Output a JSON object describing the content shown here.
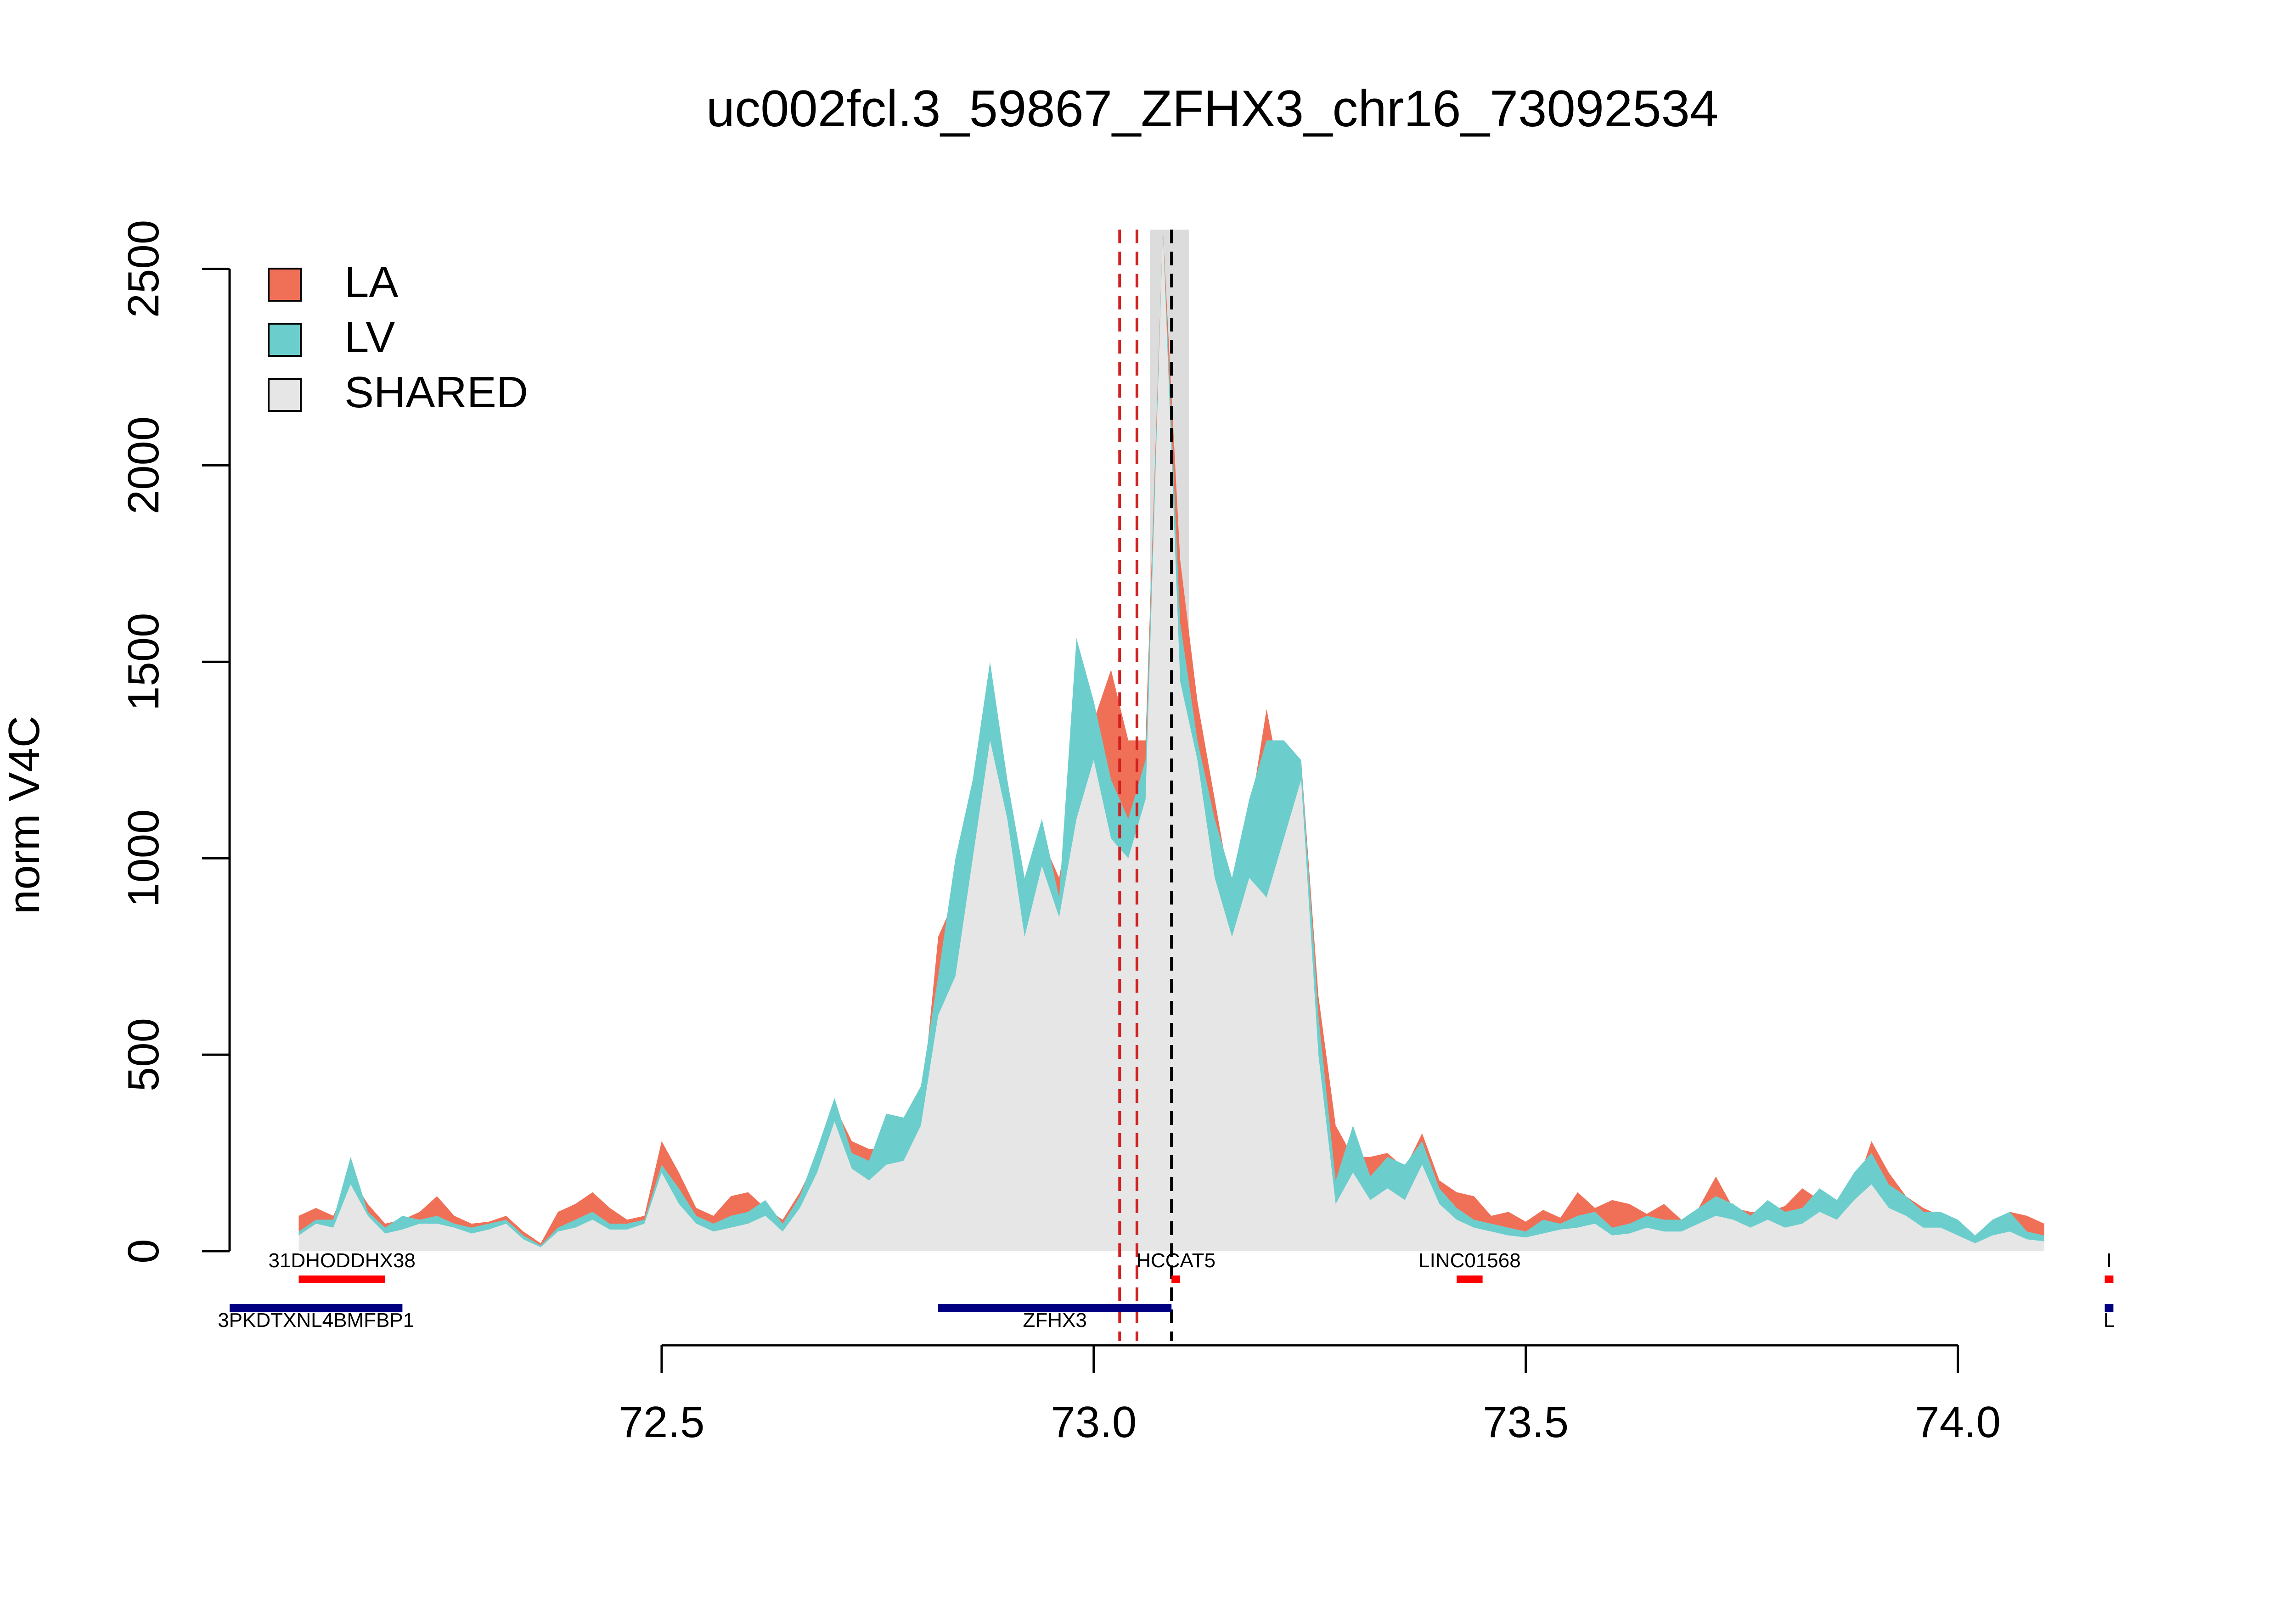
{
  "chart_data": {
    "type": "area",
    "title": "uc002fcl.3_59867_ZFHX3_chr16_73092534",
    "ylabel": "norm V4C",
    "xlabel": "",
    "xlim": [
      72.0,
      74.2
    ],
    "ylim": [
      0,
      2600
    ],
    "x_ticks": [
      72.5,
      73.0,
      73.5,
      74.0
    ],
    "x_tick_labels": [
      "72.5",
      "73.0",
      "73.5",
      "74.0"
    ],
    "y_ticks": [
      0,
      500,
      1000,
      1500,
      2000,
      2500
    ],
    "y_tick_labels": [
      "0",
      "500",
      "1000",
      "1500",
      "2000",
      "2500"
    ],
    "grid": false,
    "legend_position": "top-left",
    "legend": [
      {
        "label": "LA",
        "color": "#F07057"
      },
      {
        "label": "LV",
        "color": "#6CCECC"
      },
      {
        "label": "SHARED",
        "color": "#E6E6E6"
      }
    ],
    "series": [
      {
        "name": "SHARED",
        "color": "#E6E6E6",
        "x": [
          72.08,
          72.1,
          72.12,
          72.14,
          72.16,
          72.18,
          72.2,
          72.22,
          72.24,
          72.26,
          72.28,
          72.3,
          72.32,
          72.34,
          72.36,
          72.38,
          72.4,
          72.42,
          72.44,
          72.46,
          72.48,
          72.5,
          72.52,
          72.54,
          72.56,
          72.58,
          72.6,
          72.62,
          72.64,
          72.66,
          72.68,
          72.7,
          72.72,
          72.74,
          72.76,
          72.78,
          72.8,
          72.82,
          72.84,
          72.86,
          72.88,
          72.9,
          72.92,
          72.94,
          72.96,
          72.98,
          73.0,
          73.02,
          73.04,
          73.06,
          73.08,
          73.1,
          73.12,
          73.14,
          73.16,
          73.18,
          73.2,
          73.22,
          73.24,
          73.26,
          73.28,
          73.3,
          73.32,
          73.34,
          73.36,
          73.38,
          73.4,
          73.42,
          73.44,
          73.46,
          73.48,
          73.5,
          73.52,
          73.54,
          73.56,
          73.58,
          73.6,
          73.62,
          73.64,
          73.66,
          73.68,
          73.7,
          73.72,
          73.74,
          73.76,
          73.78,
          73.8,
          73.82,
          73.84,
          73.86,
          73.88,
          73.9,
          73.92,
          73.94,
          73.96,
          73.98,
          74.0,
          74.02,
          74.04,
          74.06,
          74.08,
          74.1
        ],
        "values": [
          40,
          70,
          60,
          170,
          90,
          45,
          55,
          70,
          70,
          60,
          45,
          55,
          70,
          30,
          10,
          50,
          60,
          80,
          55,
          55,
          70,
          200,
          120,
          70,
          50,
          60,
          70,
          90,
          50,
          110,
          200,
          330,
          210,
          180,
          220,
          230,
          320,
          600,
          700,
          1000,
          1300,
          1100,
          800,
          980,
          850,
          1100,
          1250,
          1050,
          1000,
          1150,
          2600,
          1450,
          1250,
          950,
          800,
          950,
          900,
          1050,
          1200,
          500,
          120,
          200,
          130,
          160,
          130,
          220,
          120,
          80,
          60,
          50,
          40,
          35,
          45,
          55,
          60,
          70,
          40,
          45,
          60,
          50,
          50,
          70,
          90,
          80,
          60,
          80,
          60,
          70,
          100,
          80,
          130,
          170,
          110,
          90,
          60,
          60,
          40,
          20,
          40,
          50,
          30,
          25
        ],
        "fill": "area"
      },
      {
        "name": "LA",
        "color": "#F07057",
        "x": [
          72.08,
          72.1,
          72.12,
          72.14,
          72.16,
          72.18,
          72.2,
          72.22,
          72.24,
          72.26,
          72.28,
          72.3,
          72.32,
          72.34,
          72.36,
          72.38,
          72.4,
          72.42,
          72.44,
          72.46,
          72.48,
          72.5,
          72.52,
          72.54,
          72.56,
          72.58,
          72.6,
          72.62,
          72.64,
          72.66,
          72.68,
          72.7,
          72.72,
          72.74,
          72.76,
          72.78,
          72.8,
          72.82,
          72.84,
          72.86,
          72.88,
          72.9,
          72.92,
          72.94,
          72.96,
          72.98,
          73.0,
          73.02,
          73.04,
          73.06,
          73.08,
          73.1,
          73.12,
          73.14,
          73.16,
          73.18,
          73.2,
          73.22,
          73.24,
          73.26,
          73.28,
          73.3,
          73.32,
          73.34,
          73.36,
          73.38,
          73.4,
          73.42,
          73.44,
          73.46,
          73.48,
          73.5,
          73.52,
          73.54,
          73.56,
          73.58,
          73.6,
          73.62,
          73.64,
          73.66,
          73.68,
          73.7,
          73.72,
          73.74,
          73.76,
          73.78,
          73.8,
          73.82,
          73.84,
          73.86,
          73.88,
          73.9,
          73.92,
          73.94,
          73.96,
          73.98,
          74.0,
          74.02,
          74.04,
          74.06,
          74.08,
          74.1
        ],
        "values": [
          90,
          110,
          90,
          190,
          120,
          70,
          80,
          100,
          140,
          90,
          70,
          75,
          90,
          50,
          20,
          100,
          120,
          150,
          110,
          80,
          90,
          280,
          200,
          110,
          90,
          140,
          150,
          110,
          80,
          150,
          240,
          370,
          280,
          260,
          260,
          250,
          350,
          800,
          900,
          1150,
          1350,
          1200,
          900,
          1050,
          950,
          1200,
          1350,
          1480,
          1300,
          1300,
          2600,
          1760,
          1400,
          1150,
          900,
          1100,
          1380,
          1150,
          1250,
          650,
          320,
          240,
          240,
          250,
          210,
          300,
          180,
          150,
          140,
          90,
          100,
          75,
          105,
          85,
          150,
          110,
          130,
          120,
          95,
          120,
          80,
          110,
          190,
          110,
          100,
          100,
          115,
          160,
          130,
          120,
          150,
          280,
          200,
          140,
          110,
          90,
          60,
          40,
          55,
          100,
          90,
          70
        ],
        "fill": "line"
      },
      {
        "name": "LV",
        "color": "#6CCECC",
        "x": [
          72.08,
          72.1,
          72.12,
          72.14,
          72.16,
          72.18,
          72.2,
          72.22,
          72.24,
          72.26,
          72.28,
          72.3,
          72.32,
          72.34,
          72.36,
          72.38,
          72.4,
          72.42,
          72.44,
          72.46,
          72.48,
          72.5,
          72.52,
          72.54,
          72.56,
          72.58,
          72.6,
          72.62,
          72.64,
          72.66,
          72.68,
          72.7,
          72.72,
          72.74,
          72.76,
          72.78,
          72.8,
          72.82,
          72.84,
          72.86,
          72.88,
          72.9,
          72.92,
          72.94,
          72.96,
          72.98,
          73.0,
          73.02,
          73.04,
          73.06,
          73.08,
          73.1,
          73.12,
          73.14,
          73.16,
          73.18,
          73.2,
          73.22,
          73.24,
          73.26,
          73.28,
          73.3,
          73.32,
          73.34,
          73.36,
          73.38,
          73.4,
          73.42,
          73.44,
          73.46,
          73.48,
          73.5,
          73.52,
          73.54,
          73.56,
          73.58,
          73.6,
          73.62,
          73.64,
          73.66,
          73.68,
          73.7,
          73.72,
          73.74,
          73.76,
          73.78,
          73.8,
          73.82,
          73.84,
          73.86,
          73.88,
          73.9,
          73.92,
          73.94,
          73.96,
          73.98,
          74.0,
          74.02,
          74.04,
          74.06,
          74.08,
          74.1
        ],
        "values": [
          50,
          80,
          80,
          240,
          100,
          60,
          90,
          80,
          90,
          70,
          60,
          70,
          80,
          40,
          15,
          60,
          80,
          100,
          70,
          70,
          80,
          220,
          160,
          90,
          70,
          90,
          100,
          130,
          70,
          140,
          260,
          390,
          250,
          230,
          350,
          340,
          420,
          700,
          1000,
          1200,
          1500,
          1200,
          950,
          1100,
          900,
          1560,
          1400,
          1200,
          1100,
          1250,
          2600,
          1600,
          1300,
          1100,
          950,
          1150,
          1300,
          1300,
          1250,
          600,
          180,
          320,
          190,
          240,
          220,
          280,
          160,
          110,
          80,
          70,
          60,
          50,
          80,
          70,
          90,
          100,
          60,
          70,
          90,
          80,
          80,
          110,
          140,
          120,
          90,
          130,
          100,
          110,
          160,
          130,
          200,
          250,
          170,
          140,
          100,
          100,
          80,
          40,
          80,
          100,
          50,
          40
        ],
        "fill": "line"
      }
    ],
    "annotations": {
      "vlines": [
        {
          "x": 73.03,
          "color": "#D12020",
          "style": "dashed"
        },
        {
          "x": 73.05,
          "color": "#D12020",
          "style": "dashed"
        },
        {
          "x": 73.09,
          "color": "#000000",
          "style": "dashed"
        }
      ],
      "shaded_region": {
        "x0": 73.065,
        "x1": 73.11,
        "color": "#DCDCDC"
      }
    },
    "gene_tracks": [
      {
        "row": "top",
        "genes": [
          {
            "label": "31DHODDHX38",
            "x0": 72.08,
            "x1": 72.18,
            "color": "#FF0000"
          },
          {
            "label": "HCCAT5",
            "x0": 73.09,
            "x1": 73.1,
            "color": "#FF0000"
          },
          {
            "label": "LINC01568",
            "x0": 73.42,
            "x1": 73.45,
            "color": "#FF0000"
          },
          {
            "label": "I",
            "x0": 74.17,
            "x1": 74.18,
            "color": "#FF0000"
          }
        ]
      },
      {
        "row": "bottom",
        "genes": [
          {
            "label": "3PKDTXNL4BMFBP1",
            "x0": 72.0,
            "x1": 72.2,
            "color": "#000080"
          },
          {
            "label": "ZFHX3",
            "x0": 72.82,
            "x1": 73.09,
            "color": "#000080"
          },
          {
            "label": "L",
            "x0": 74.17,
            "x1": 74.18,
            "color": "#000080"
          }
        ]
      }
    ]
  }
}
